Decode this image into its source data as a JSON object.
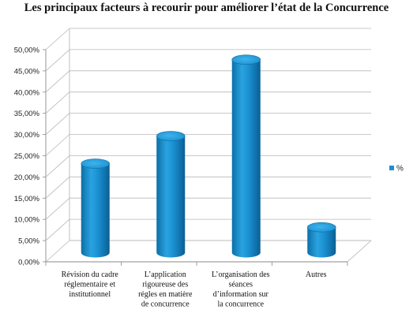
{
  "chart_data": {
    "type": "bar",
    "title": "Les principaux facteurs à recourir pour améliorer l’état de la Concurrence",
    "xlabel": "",
    "ylabel": "",
    "categories": [
      [
        "Révision du cadre",
        "réglementaire et",
        "institutionnel"
      ],
      [
        "L’application",
        "rigoureuse des",
        "régles en matière",
        "de concurrence"
      ],
      [
        "L’organisation des",
        "séances",
        "d’information sur",
        "la concurrence"
      ],
      [
        "Autres"
      ]
    ],
    "series": [
      {
        "name": "%",
        "values": [
          21.0,
          27.5,
          45.5,
          6.0
        ],
        "color": "#1e8fcc"
      }
    ],
    "ylim": [
      0,
      50
    ],
    "yticks": [
      "0,00%",
      "5,00%",
      "10,00%",
      "15,00%",
      "20,00%",
      "25,00%",
      "30,00%",
      "35,00%",
      "40,00%",
      "45,00%",
      "50,00%"
    ],
    "grid": true,
    "legend_position": "right",
    "style": "3d-cylinder"
  }
}
